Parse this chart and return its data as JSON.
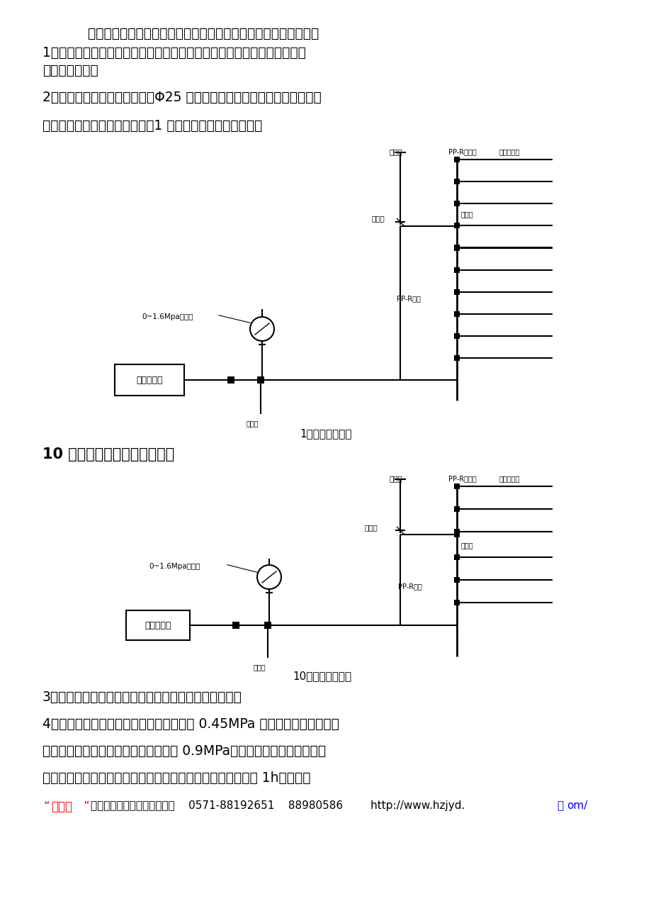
{
  "bg_color": "#ffffff",
  "para1": "    给水管道试压以每层为单位。手动试压泵水箱由自来水直接灌入。",
  "para2": "1、检查每户进水支管的终端堵头，确认丝堵处质量合格，选距离管井最远",
  "para3": "一户接水龙头。",
  "para4": "2、在集中设置水表的管井内用Φ25 管及管件将各户的给水表后支管连接，",
  "para5": "预留一接口与手动试压泵相连。1 号楼具体试验方法见下图：",
  "label1": "1号楼试压大样图",
  "mid_text": "10 号楼具体试验方法见下图：",
  "label2": "10号楼试压大样图",
  "para7": "3、从预留接口处灌水直到水龙头有水溢出，排尽空气。",
  "para8": "4、启动试压泵，压力缓慢上升，使其到达 0.45MPa 时，打开水龙头使其管",
  "para9": "道内气体完全排出。而后再缓慢升压至 0.9MPa，关闭阀门，检查各管件熔",
  "para10": "接处，截止阀、丝堵等接口是否有渗漏。达到试验压力后稳压 1h，观察接",
  "footer_red1": "“",
  "footer_red2": "嘉意德",
  "footer_red3": "”",
  "footer_black": "专业从事建筑软件开发和销售    0571-88192651    88980586        http://www.hzjyd.",
  "footer_blue1": "测",
  "footer_blue2": "om/",
  "d1_label_paiqiguan": "排气管",
  "d1_label_ppr": "PP-R直接头",
  "d1_label_inlet": "入户给水管",
  "d1_label_paiqifa": "排气阀",
  "d1_label_lianjietou1": "连接头",
  "d1_label_pprsantong": "PP-R三通",
  "d1_label_lianjietou2": "连接头",
  "d1_label_gauge": "0~1.6Mpa压力表",
  "d1_label_pump": "手动试压泵",
  "d2_label_paiqiguan": "排气管",
  "d2_label_ppr": "PP-R直接头",
  "d2_label_inlet": "入户给水管",
  "d2_label_paiqifa": "排气阀",
  "d2_label_lianjietou1": "连接头",
  "d2_label_pprsantong": "PP-R三通",
  "d2_label_lianjietou2": "连接头",
  "d2_label_gauge": "0~1.6Mpa压力表",
  "d2_label_pump": "手动试压泵"
}
